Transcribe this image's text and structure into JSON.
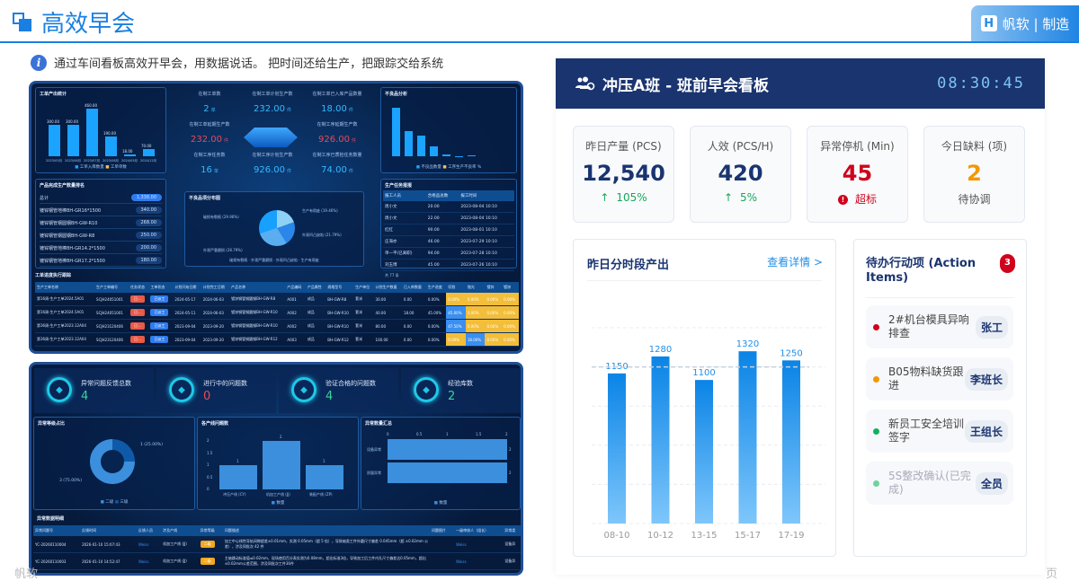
{
  "header": {
    "title": "高效早会",
    "brand": "帆软 | 制造",
    "brand_logo": "logo-icon",
    "info": "通过车间看板高效开早会，用数据说话。 把时间还给生产，把跟踪交给系统"
  },
  "shot1": {
    "output_panel": {
      "title": "工单产出统计",
      "bars": [
        300,
        300,
        460,
        190,
        18,
        70
      ],
      "bar_labels": [
        "300.00",
        "300.00",
        "460.00",
        "190.00",
        "18.00",
        "70.00"
      ],
      "months": [
        "2023/05月",
        "2023/06月",
        "2023/07月",
        "2023/08月",
        "2024/05月",
        "2024/12月"
      ],
      "legend": [
        "工单入库数量",
        "工单单数"
      ]
    },
    "kpis": [
      {
        "label": "在制工单数",
        "value": "2",
        "unit": "单"
      },
      {
        "label": "在制工单计划生产数",
        "value": "232.00",
        "unit": "件"
      },
      {
        "label": "在制工单已入库产品数量",
        "value": "18.00",
        "unit": "件"
      },
      {
        "label": "在制工单延期生产数",
        "value": "232.00",
        "unit": "件"
      },
      {
        "label": "在制工序延期生产数",
        "value": "926.00",
        "unit": "件"
      },
      {
        "label": "在制工序任务数",
        "value": "16",
        "unit": "单"
      },
      {
        "label": "在制工序计划生产数",
        "value": "926.00",
        "unit": "件"
      },
      {
        "label": "在制工序已质检任务数量",
        "value": "74.00",
        "unit": "件"
      }
    ],
    "defect_panel": {
      "title": "不良品分析",
      "bars": [
        115,
        60,
        50,
        24,
        4,
        1,
        2,
        0
      ],
      "legend": [
        "不良品数量",
        "工序生产不良率 %"
      ]
    },
    "rank_panel": {
      "title": "产品完成生产数量排名",
      "rows": [
        {
          "name": "总计",
          "value": "1,338.00"
        },
        {
          "name": "镀锌钢管地棒BH-GR16*1500",
          "value": "340.00"
        },
        {
          "name": "镀锌钢管钢圆钢BH-GW-R10",
          "value": "268.00"
        },
        {
          "name": "镀锌钢管钢圆钢BH-GW-R8",
          "value": "250.00"
        },
        {
          "name": "镀锌钢管地棒BH-GR14.2*1500",
          "value": "200.00"
        },
        {
          "name": "镀锌钢管地棒BH-GR17.2*1500",
          "value": "180.00"
        }
      ]
    },
    "pie_panel": {
      "title": "不良品项分布图",
      "labels": [
        "破损有裂痕 (29.96%)",
        "生产有瑕疵 (19.46%)",
        "外观凹凸缺陷 (21.79%)",
        "外观严重磨损 (28.79%)"
      ],
      "legend": [
        "破损有裂痕",
        "外观严重磨损",
        "外观凹凸缺陷",
        "生产有瑕疵"
      ]
    },
    "task_panel": {
      "title": "生产任务报报",
      "headers": [
        "报工人员",
        "合格品总数",
        "报工时间"
      ],
      "rows": [
        [
          "周小文",
          "20.00",
          "2023-08-04 10:10"
        ],
        [
          "周小文",
          "22.00",
          "2023-08-04 10:10"
        ],
        [
          "红红",
          "90.00",
          "2023-08-01 10:10"
        ],
        [
          "庄海亦",
          "46.00",
          "2023-07-29 10:10"
        ],
        [
          "单一平(已离职)",
          "94.00",
          "2023-07-28 10:10"
        ],
        [
          "刘玉博",
          "45.00",
          "2023-07-26 10:10"
        ]
      ],
      "footer": "共 77 条"
    },
    "order_panel": {
      "title": "工单进度执行跟踪",
      "headers": [
        "生产工单名称",
        "生产工单编号",
        "任务状态",
        "工单状态",
        "计划开始日期",
        "计划完工日期",
        "产品名称",
        "产品编码",
        "产品属性",
        "规格型号",
        "生产单位",
        "计划生产数量",
        "已入库数量",
        "生产进度",
        "切割",
        "抛光",
        "镀锌",
        "镀锌"
      ],
      "rows": [
        [
          "第16周-生产工单2024.5A01",
          "SCJH24051001",
          "已...",
          "已派工",
          "2024-05-17",
          "2024-06-03",
          "镀锌钢管钢圆钢BH-GW-R8",
          "A001",
          "成品",
          "BH-GW-R8",
          "套米",
          "30.00",
          "0.00",
          "0.00%",
          "0.00%",
          "0.00%",
          "0.00%",
          "0.00%"
        ],
        [
          "第16周-生产工单2024.5A01",
          "SCJH24051001",
          "已...",
          "已派工",
          "2024-05-11",
          "2024-06-03",
          "镀锌钢管钢圆钢BH-GW-R10",
          "A002",
          "成品",
          "BH-GW-R10",
          "套米",
          "40.00",
          "18.00",
          "45.00%",
          "45.00%",
          "0.00%",
          "0.00%",
          "0.00%"
        ],
        [
          "第36周-生产工单2023.12A04",
          "SCJH23120406",
          "已...",
          "已派工",
          "2023-09-04",
          "2023-09-20",
          "镀锌钢管钢圆钢BH-GW-R10",
          "A002",
          "成品",
          "BH-GW-R10",
          "套米",
          "80.00",
          "0.00",
          "0.00%",
          "47.50%",
          "0.00%",
          "0.00%",
          "0.00%"
        ],
        [
          "第36周-生产工单2023.12A04",
          "SCJH23120406",
          "已...",
          "已派工",
          "2023-09-04",
          "2023-09-20",
          "镀锌钢管钢圆钢BH-GW-R12",
          "A003",
          "成品",
          "BH-GW-R12",
          "套米",
          "100.00",
          "0.00",
          "0.00%",
          "0.00%",
          "18.00%",
          "0.00%",
          "0.00%"
        ]
      ]
    }
  },
  "shot2": {
    "kpis": [
      {
        "label": "异常问题反馈总数",
        "value": "4"
      },
      {
        "label": "进行中的问题数",
        "value": "0"
      },
      {
        "label": "验证合格的问题数",
        "value": "4"
      },
      {
        "label": "经验库数",
        "value": "2"
      }
    ],
    "donut": {
      "title": "异常等级占比",
      "labels": [
        "1 (25.00%)",
        "3 (75.00%)"
      ],
      "legend": [
        "二级",
        "三级"
      ]
    },
    "line_bars": {
      "title": "各产线问题数",
      "categories": [
        "冲压产线 (CY)",
        "机加工产线 (JJ)",
        "装配产线 (ZP)"
      ],
      "values": [
        1,
        2,
        1
      ],
      "ticks": [
        "0",
        "0.5",
        "1",
        "1.5",
        "2"
      ],
      "legend": "数量"
    },
    "hbar": {
      "title": "异常数量汇总",
      "categories": [
        "设备异常",
        "质量异常"
      ],
      "values": [
        2,
        2
      ],
      "ticks": [
        "0",
        "0.5",
        "1",
        "1.5",
        "2"
      ],
      "legend": "数量"
    },
    "detail": {
      "title": "异常数据明细",
      "headers": [
        "异常问题号",
        "反馈时间",
        "反馈人员",
        "涉及产线",
        "异常等级",
        "问题描述",
        "问题图片",
        "一级审核人（组长）",
        "异常类"
      ],
      "rows": [
        [
          "YC-20260110004",
          "2026-01-10 15:07:43",
          "Weiss",
          "机加工产线 (JJ)",
          "二级",
          "加工中心线性导轨间隙超差±0.01mm，实测 0.05mm（超 5 倍），导致轴类工件外圆尺寸偏差 0.045mm（超 ±0.02mm 公差），涉及同批次 42 件",
          "",
          "Weiss",
          "设备异"
        ],
        [
          "YC-20260110003",
          "2026-01-10 14:52:47",
          "Weiss",
          "机加工产线 (JJ)",
          "二级",
          "主轴跳动标准值≤0.02mm，现场使用百分表实测为0.08mm，超出标准3倍，导致加工后工件内孔尺寸偏差达0.05mm，超出±0.02mm公差范围，涉及同批次工件36件",
          "",
          "Weiss",
          "设备异"
        ]
      ]
    }
  },
  "board": {
    "icon": "users-gear-icon",
    "title": "冲压A班 - 班前早会看板",
    "clock": "08:30:45",
    "kpis": [
      {
        "label": "昨日产量 (PCS)",
        "value": "12,540",
        "sub": "105%",
        "sub_icon": "arrow-up-icon",
        "color": "#1a3470",
        "sub_color": "#1aa65a"
      },
      {
        "label": "人效 (PCS/H)",
        "value": "420",
        "sub": "5%",
        "sub_icon": "arrow-up-icon",
        "color": "#1a3470",
        "sub_color": "#1aa65a"
      },
      {
        "label": "异常停机 (Min)",
        "value": "45",
        "sub": "超标",
        "sub_icon": "alert-icon",
        "color": "#d0021b",
        "sub_color": "#d0021b"
      },
      {
        "label": "今日缺料 (项)",
        "value": "2",
        "sub": "待协调",
        "color": "#f39800",
        "sub_color": "#555"
      }
    ],
    "chart_title": "昨日分时段产出",
    "chart_link": "查看详情 >",
    "actions_title": "待办行动项 (Action Items)",
    "actions_count": "3",
    "actions": [
      {
        "text": "2#机台模具异响排查",
        "owner": "张工",
        "color": "#d0021b"
      },
      {
        "text": "B05物料缺货跟进",
        "owner": "李班长",
        "color": "#f39800"
      },
      {
        "text": "新员工安全培训签字",
        "owner": "王组长",
        "color": "#12b05a"
      },
      {
        "text": "5S整改确认(已完成)",
        "owner": "全员",
        "color": "#6fd39a",
        "done": true
      }
    ]
  },
  "footer": {
    "left": "帆软",
    "right": "页"
  },
  "chart_data": {
    "type": "bar",
    "title": "昨日分时段产出",
    "categories": [
      "08-10",
      "10-12",
      "13-15",
      "15-17",
      "17-19"
    ],
    "values": [
      1150,
      1280,
      1100,
      1320,
      1250
    ],
    "ylim": [
      0,
      1500
    ],
    "reference_line": 1200,
    "grid": true,
    "bar_color": "#1f8ee8"
  }
}
